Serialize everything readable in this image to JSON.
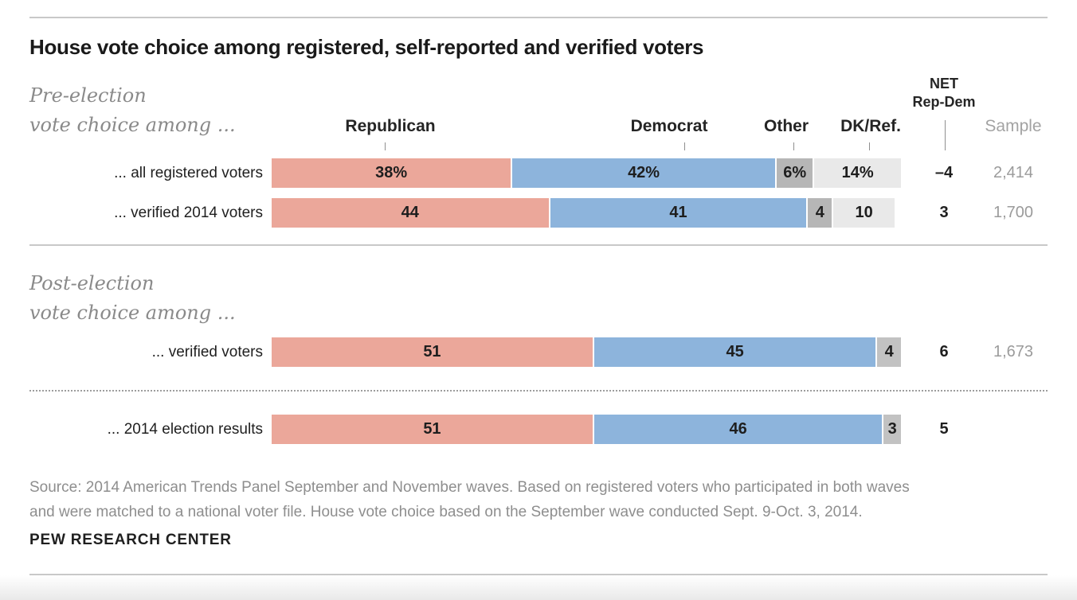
{
  "title": "House vote choice among registered, self-reported and verified voters",
  "sections": {
    "pre": {
      "line1": "Pre-election",
      "line2": "vote choice among ..."
    },
    "post": {
      "line1": "Post-election",
      "line2": "vote choice among ..."
    }
  },
  "columns": {
    "republican": "Republican",
    "democrat": "Democrat",
    "other": "Other",
    "dkref": "DK/Ref.",
    "net_line1": "NET",
    "net_line2": "Rep-Dem",
    "sample": "Sample"
  },
  "chart_data": {
    "type": "bar",
    "stacked": true,
    "orientation": "horizontal",
    "value_unit": "percent",
    "axis_range": [
      0,
      100
    ],
    "categories": [
      "Republican",
      "Democrat",
      "Other",
      "DK/Ref."
    ],
    "palette": {
      "republican": "#eba79a",
      "democrat": "#8db4dc",
      "other": "#b6b6b6",
      "other_light": "#c2c2c2",
      "dkref": "#e9e9e9"
    },
    "rows": [
      {
        "label": "... all registered voters",
        "section": "Pre-election",
        "segments": [
          {
            "category": "Republican",
            "value": 38,
            "text": "38%",
            "colorKey": "republican"
          },
          {
            "category": "Democrat",
            "value": 42,
            "text": "42%",
            "colorKey": "democrat"
          },
          {
            "category": "Other",
            "value": 6,
            "text": "6%",
            "colorKey": "other"
          },
          {
            "category": "DK/Ref.",
            "value": 14,
            "text": "14%",
            "colorKey": "dkref"
          }
        ],
        "net_value": -4,
        "net_text": "–4",
        "sample": "2,414"
      },
      {
        "label": "... verified 2014 voters",
        "section": "Pre-election",
        "segments": [
          {
            "category": "Republican",
            "value": 44,
            "text": "44",
            "colorKey": "republican"
          },
          {
            "category": "Democrat",
            "value": 41,
            "text": "41",
            "colorKey": "democrat"
          },
          {
            "category": "Other",
            "value": 4,
            "text": "4",
            "colorKey": "other"
          },
          {
            "category": "DK/Ref.",
            "value": 10,
            "text": "10",
            "colorKey": "dkref"
          }
        ],
        "net_value": 3,
        "net_text": "3",
        "sample": "1,700"
      },
      {
        "label": "... verified voters",
        "section": "Post-election",
        "segments": [
          {
            "category": "Republican",
            "value": 51,
            "text": "51",
            "colorKey": "republican"
          },
          {
            "category": "Democrat",
            "value": 45,
            "text": "45",
            "colorKey": "democrat"
          },
          {
            "category": "Other",
            "value": 4,
            "text": "4",
            "colorKey": "other_light"
          }
        ],
        "net_value": 6,
        "net_text": "6",
        "sample": "1,673"
      },
      {
        "label": "... 2014 election results",
        "section": "Post-election",
        "segments": [
          {
            "category": "Republican",
            "value": 51,
            "text": "51",
            "colorKey": "republican"
          },
          {
            "category": "Democrat",
            "value": 46,
            "text": "46",
            "colorKey": "democrat"
          },
          {
            "category": "Other",
            "value": 3,
            "text": "3",
            "colorKey": "other_light"
          }
        ],
        "net_value": 5,
        "net_text": "5",
        "sample": ""
      }
    ]
  },
  "footer": {
    "source_lines": [
      "Source: 2014 American Trends Panel September and November waves. Based on registered voters who participated in both waves",
      "and were matched to a national voter file. House vote choice based on the September wave conducted Sept. 9-Oct. 3, 2014."
    ],
    "brand": "PEW RESEARCH CENTER"
  }
}
